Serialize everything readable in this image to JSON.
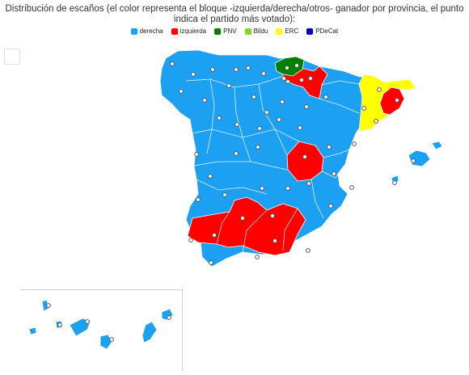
{
  "title": "Distribución de escaños (el color representa el bloque -izquierda/derecha/otros- ganador por provincia, el punto indica el partido más votado):",
  "legend": [
    {
      "label": "derecha",
      "color": "#1ca0f2"
    },
    {
      "label": "izquierda",
      "color": "#ff0000"
    },
    {
      "label": "PNV",
      "color": "#008000"
    },
    {
      "label": "Bildu",
      "color": "#8bd22b"
    },
    {
      "label": "ERC",
      "color": "#ffff00"
    },
    {
      "label": "PDeCat",
      "color": "#0000c8"
    }
  ],
  "colors": {
    "derecha": "#1ca0f2",
    "izquierda": "#ff0000",
    "pnv": "#008000",
    "erc": "#ffff00",
    "border": "#ffffff",
    "dot_fill": "#ffffff",
    "dot_stroke": "#555555"
  }
}
